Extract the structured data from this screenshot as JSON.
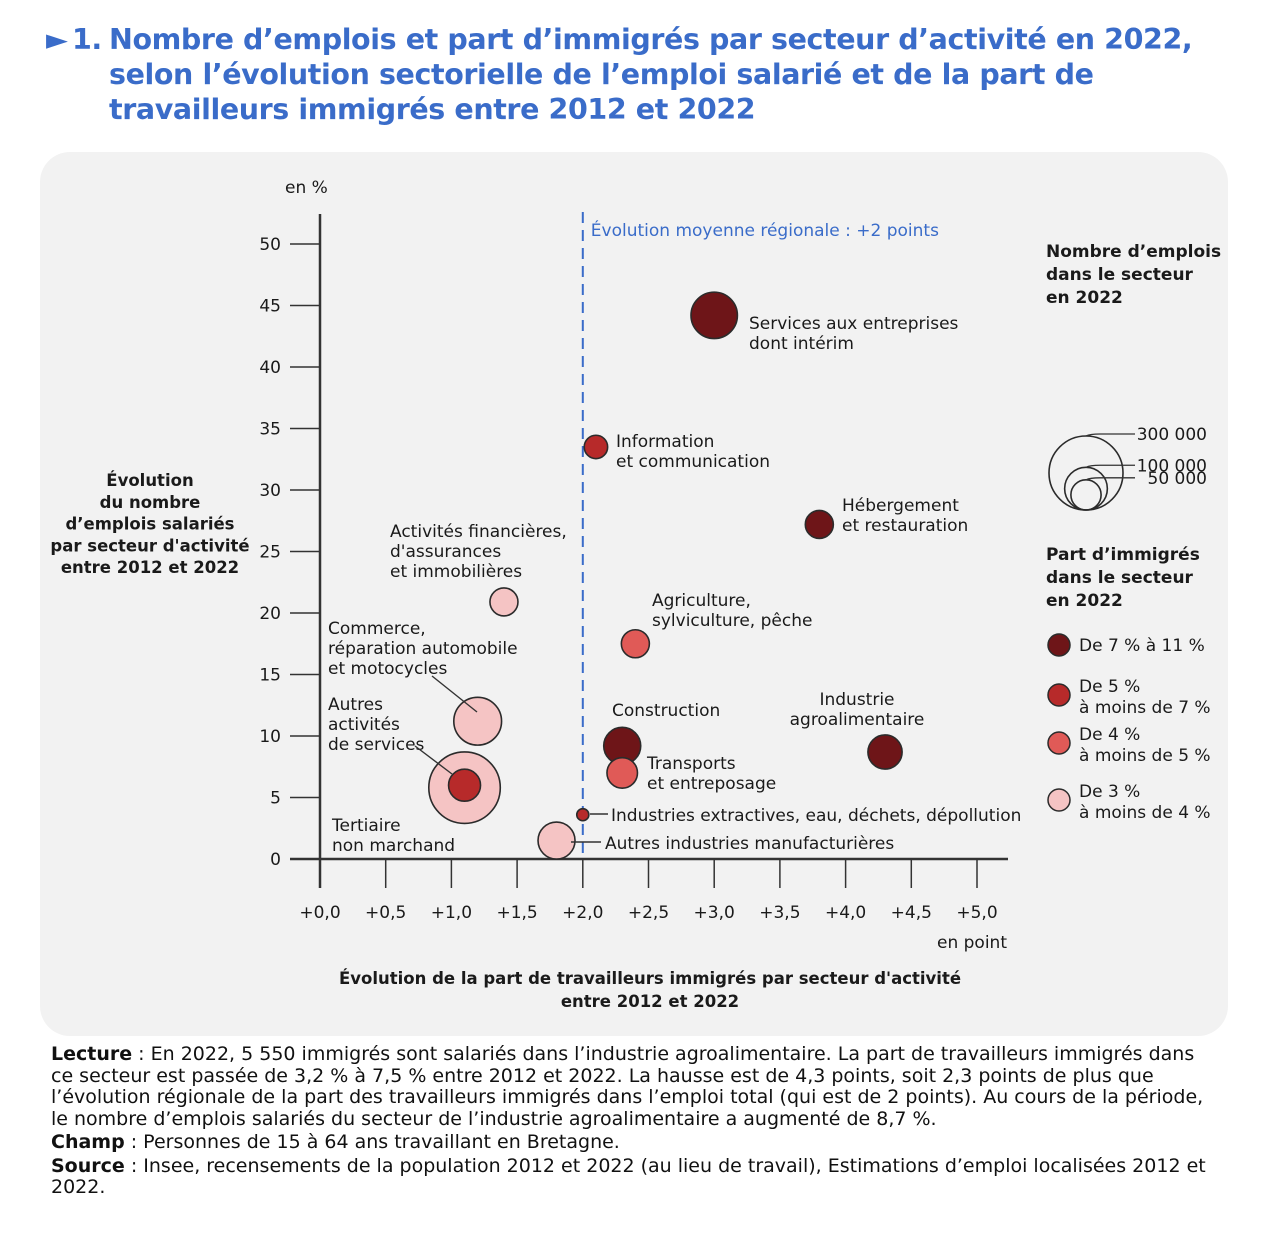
{
  "title": {
    "marker": "►",
    "number": "1.",
    "lines": [
      "Nombre d’emplois et part d’immigrés par secteur d’activité en 2022,",
      "selon l’évolution sectorielle de l’emploi salarié et de la part de",
      "travailleurs immigrés entre 2012 et 2022"
    ]
  },
  "chart_data": {
    "type": "scatter",
    "y_unit": "en %",
    "x_unit": "en point",
    "xlabel_lines": [
      "Évolution de la part de travailleurs immigrés par secteur d'activité",
      "entre 2012 et 2022"
    ],
    "ylabel_lines": [
      "Évolution",
      "du nombre",
      "d’emplois salariés",
      "par secteur d'activité",
      "entre 2012 et 2022"
    ],
    "xlim": [
      0,
      5
    ],
    "ylim": [
      0,
      50
    ],
    "x_ticks": [
      "+0,0",
      "+0,5",
      "+1,0",
      "+1,5",
      "+2,0",
      "+2,5",
      "+3,0",
      "+3,5",
      "+4,0",
      "+4,5",
      "+5,0"
    ],
    "y_ticks": [
      "0",
      "5",
      "10",
      "15",
      "20",
      "25",
      "30",
      "35",
      "40",
      "45",
      "50"
    ],
    "reference_line": {
      "x": 2.0,
      "label": "Évolution moyenne régionale : +2 points"
    },
    "points": [
      {
        "name_lines": [
          "Services aux entreprises",
          "dont intérim"
        ],
        "x": 3.0,
        "y": 44.2,
        "jobs": 118000,
        "class": 0
      },
      {
        "name_lines": [
          "Information",
          "et communication"
        ],
        "x": 2.1,
        "y": 33.5,
        "jobs": 30000,
        "class": 1
      },
      {
        "name_lines": [
          "Hébergement",
          "et restauration"
        ],
        "x": 3.8,
        "y": 27.2,
        "jobs": 43000,
        "class": 0
      },
      {
        "name_lines": [
          "Activités financières,",
          "d'assurances",
          "et immobilières"
        ],
        "x": 1.4,
        "y": 20.9,
        "jobs": 43000,
        "class": 3
      },
      {
        "name_lines": [
          "Agriculture,",
          "sylviculture, pêche"
        ],
        "x": 2.4,
        "y": 17.5,
        "jobs": 43000,
        "class": 2
      },
      {
        "name_lines": [
          "Commerce,",
          "réparation automobile",
          "et motocycles"
        ],
        "x": 1.2,
        "y": 11.2,
        "jobs": 125000,
        "class": 3
      },
      {
        "name_lines": [
          "Construction"
        ],
        "x": 2.3,
        "y": 9.2,
        "jobs": 75000,
        "class": 0
      },
      {
        "name_lines": [
          "Industrie",
          "agroalimentaire"
        ],
        "x": 4.3,
        "y": 8.7,
        "jobs": 64000,
        "class": 0
      },
      {
        "name_lines": [
          "Transports",
          "et entreposage"
        ],
        "x": 2.3,
        "y": 7.0,
        "jobs": 51000,
        "class": 2
      },
      {
        "name_lines": [
          "Tertiaire",
          "non marchand"
        ],
        "x": 1.1,
        "y": 5.8,
        "jobs": 280000,
        "class": 3
      },
      {
        "name_lines": [
          "Autres",
          "activités",
          "de services"
        ],
        "x": 1.1,
        "y": 6.0,
        "jobs": 56000,
        "class": 1
      },
      {
        "name_lines": [
          "Industries extractives, eau, déchets, dépollution"
        ],
        "x": 2.0,
        "y": 3.6,
        "jobs": 8000,
        "class": 1
      },
      {
        "name_lines": [
          "Autres industries manufacturières"
        ],
        "x": 1.8,
        "y": 1.5,
        "jobs": 75000,
        "class": 3
      }
    ],
    "size_legend": {
      "title_lines": [
        "Nombre d’emplois",
        "dans le secteur",
        "en 2022"
      ],
      "values": [
        300000,
        100000,
        50000
      ],
      "labels": [
        "300 000",
        "100 000",
        "50 000"
      ]
    },
    "color_legend": {
      "title_lines": [
        "Part d’immigrés",
        "dans le secteur",
        "en 2022"
      ],
      "classes": [
        {
          "label_lines": [
            "De 7 % à 11 %"
          ],
          "color": "#6e1518"
        },
        {
          "label_lines": [
            "De 5 %",
            "à moins de 7 %"
          ],
          "color": "#b72a2a"
        },
        {
          "label_lines": [
            "De 4 %",
            "à moins de 5 %"
          ],
          "color": "#e05a57"
        },
        {
          "label_lines": [
            "De 3 %",
            "à moins de 4 %"
          ],
          "color": "#f5c4c4"
        }
      ]
    }
  },
  "notes": [
    {
      "label": "Lecture",
      "text": " : En 2022, 5 550 immigrés sont salariés dans l’industrie agroalimentaire. La part de travailleurs immigrés dans ce secteur est passée de 3,2 % à 7,5 % entre 2012 et 2022. La hausse est de 4,3 points, soit 2,3 points de plus que l’évolution régionale de la part des travailleurs immigrés dans l’emploi total (qui est de 2 points). Au cours de la période, le nombre d’emplois salariés du secteur de l’industrie agroalimentaire a augmenté de 8,7 %."
    },
    {
      "label": "Champ",
      "text": " : Personnes de 15 à 64 ans travaillant en Bretagne."
    },
    {
      "label": "Source",
      "text": " : Insee, recensements de la population 2012 et 2022 (au lieu de travail), Estimations d’emploi localisées 2012 et 2022."
    }
  ]
}
